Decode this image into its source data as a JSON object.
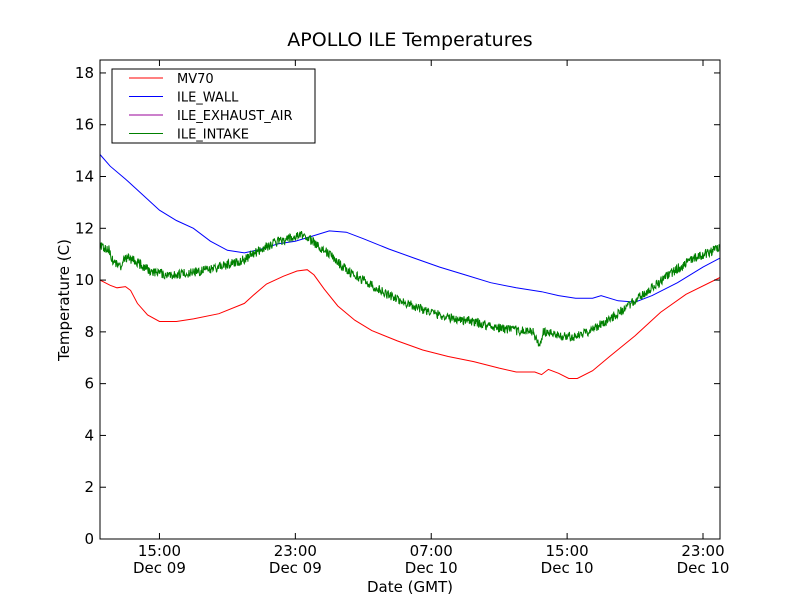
{
  "chart_data": {
    "type": "line",
    "title": "APOLLO ILE Temperatures",
    "xlabel": "Date (GMT)",
    "ylabel": "Temperature (C)",
    "x_unit": "hours since Dec 09 11:00 GMT",
    "xlim": [
      0,
      36.5
    ],
    "ylim": [
      0,
      18.5
    ],
    "y_ticks": [
      0,
      2,
      4,
      6,
      8,
      10,
      12,
      14,
      16,
      18
    ],
    "x_ticks": [
      {
        "x": 3.5,
        "time": "15:00",
        "date": "Dec 09"
      },
      {
        "x": 11.5,
        "time": "23:00",
        "date": "Dec 09"
      },
      {
        "x": 19.5,
        "time": "07:00",
        "date": "Dec 10"
      },
      {
        "x": 27.5,
        "time": "15:00",
        "date": "Dec 10"
      },
      {
        "x": 35.5,
        "time": "23:00",
        "date": "Dec 10"
      }
    ],
    "grid": false,
    "legend_position": "top-left",
    "series": [
      {
        "name": "MV70",
        "color": "#ff0000",
        "noise": 0,
        "points": [
          [
            0,
            10.0
          ],
          [
            0.6,
            9.8
          ],
          [
            1.0,
            9.7
          ],
          [
            1.5,
            9.75
          ],
          [
            1.8,
            9.6
          ],
          [
            2.2,
            9.1
          ],
          [
            2.8,
            8.65
          ],
          [
            3.5,
            8.4
          ],
          [
            4.5,
            8.4
          ],
          [
            5.5,
            8.5
          ],
          [
            7,
            8.7
          ],
          [
            8.5,
            9.1
          ],
          [
            9,
            9.4
          ],
          [
            9.8,
            9.85
          ],
          [
            10.8,
            10.15
          ],
          [
            11.6,
            10.35
          ],
          [
            12.2,
            10.4
          ],
          [
            12.6,
            10.2
          ],
          [
            13.2,
            9.65
          ],
          [
            14,
            9.0
          ],
          [
            15,
            8.45
          ],
          [
            16,
            8.05
          ],
          [
            17.5,
            7.65
          ],
          [
            19,
            7.3
          ],
          [
            20.5,
            7.05
          ],
          [
            22,
            6.85
          ],
          [
            23.5,
            6.6
          ],
          [
            24.5,
            6.45
          ],
          [
            25.6,
            6.45
          ],
          [
            26.0,
            6.35
          ],
          [
            26.4,
            6.55
          ],
          [
            27,
            6.4
          ],
          [
            27.6,
            6.2
          ],
          [
            28.1,
            6.2
          ],
          [
            29,
            6.5
          ],
          [
            30,
            7.05
          ],
          [
            31.5,
            7.85
          ],
          [
            33,
            8.75
          ],
          [
            34.5,
            9.45
          ],
          [
            36.5,
            10.1
          ]
        ]
      },
      {
        "name": "ILE_WALL",
        "color": "#0000ff",
        "noise": 0,
        "points": [
          [
            0,
            14.85
          ],
          [
            0.6,
            14.4
          ],
          [
            1.5,
            13.9
          ],
          [
            2.5,
            13.3
          ],
          [
            3.5,
            12.7
          ],
          [
            4.5,
            12.3
          ],
          [
            5.5,
            12.0
          ],
          [
            6.5,
            11.5
          ],
          [
            7.5,
            11.15
          ],
          [
            8.5,
            11.05
          ],
          [
            9.5,
            11.2
          ],
          [
            10.5,
            11.4
          ],
          [
            11.5,
            11.5
          ],
          [
            12.5,
            11.7
          ],
          [
            13.5,
            11.9
          ],
          [
            14.5,
            11.85
          ],
          [
            15.5,
            11.6
          ],
          [
            17,
            11.2
          ],
          [
            18.5,
            10.85
          ],
          [
            20,
            10.5
          ],
          [
            21.5,
            10.2
          ],
          [
            23,
            9.9
          ],
          [
            24.5,
            9.7
          ],
          [
            26,
            9.55
          ],
          [
            27,
            9.4
          ],
          [
            28,
            9.3
          ],
          [
            29,
            9.3
          ],
          [
            29.5,
            9.4
          ],
          [
            30.5,
            9.2
          ],
          [
            31.5,
            9.15
          ],
          [
            32.5,
            9.4
          ],
          [
            34,
            9.9
          ],
          [
            35.5,
            10.5
          ],
          [
            36.5,
            10.85
          ]
        ]
      },
      {
        "name": "ILE_EXHAUST_AIR",
        "color": "#990099",
        "noise": 0,
        "points": []
      },
      {
        "name": "ILE_INTAKE",
        "color": "#008000",
        "noise": 0.18,
        "points": [
          [
            0,
            11.3
          ],
          [
            0.5,
            11.2
          ],
          [
            0.8,
            10.7
          ],
          [
            1.2,
            10.5
          ],
          [
            1.5,
            10.9
          ],
          [
            2,
            10.75
          ],
          [
            3,
            10.35
          ],
          [
            4,
            10.2
          ],
          [
            5,
            10.25
          ],
          [
            6,
            10.35
          ],
          [
            7,
            10.5
          ],
          [
            8.5,
            10.8
          ],
          [
            9.5,
            11.2
          ],
          [
            10.5,
            11.5
          ],
          [
            11.5,
            11.65
          ],
          [
            12,
            11.75
          ],
          [
            12.5,
            11.5
          ],
          [
            13.5,
            11.0
          ],
          [
            14.5,
            10.4
          ],
          [
            15.5,
            10.0
          ],
          [
            16.5,
            9.6
          ],
          [
            17.5,
            9.25
          ],
          [
            18.5,
            9.0
          ],
          [
            19.5,
            8.75
          ],
          [
            20.5,
            8.55
          ],
          [
            21.5,
            8.45
          ],
          [
            22.5,
            8.3
          ],
          [
            23.5,
            8.15
          ],
          [
            24.5,
            8.05
          ],
          [
            25.5,
            8.0
          ],
          [
            25.9,
            7.4
          ],
          [
            26.1,
            8.0
          ],
          [
            27,
            7.85
          ],
          [
            28,
            7.8
          ],
          [
            29,
            8.1
          ],
          [
            30,
            8.5
          ],
          [
            31,
            8.95
          ],
          [
            32,
            9.45
          ],
          [
            33,
            9.95
          ],
          [
            34,
            10.45
          ],
          [
            35,
            10.85
          ],
          [
            36.5,
            11.25
          ]
        ]
      }
    ]
  }
}
